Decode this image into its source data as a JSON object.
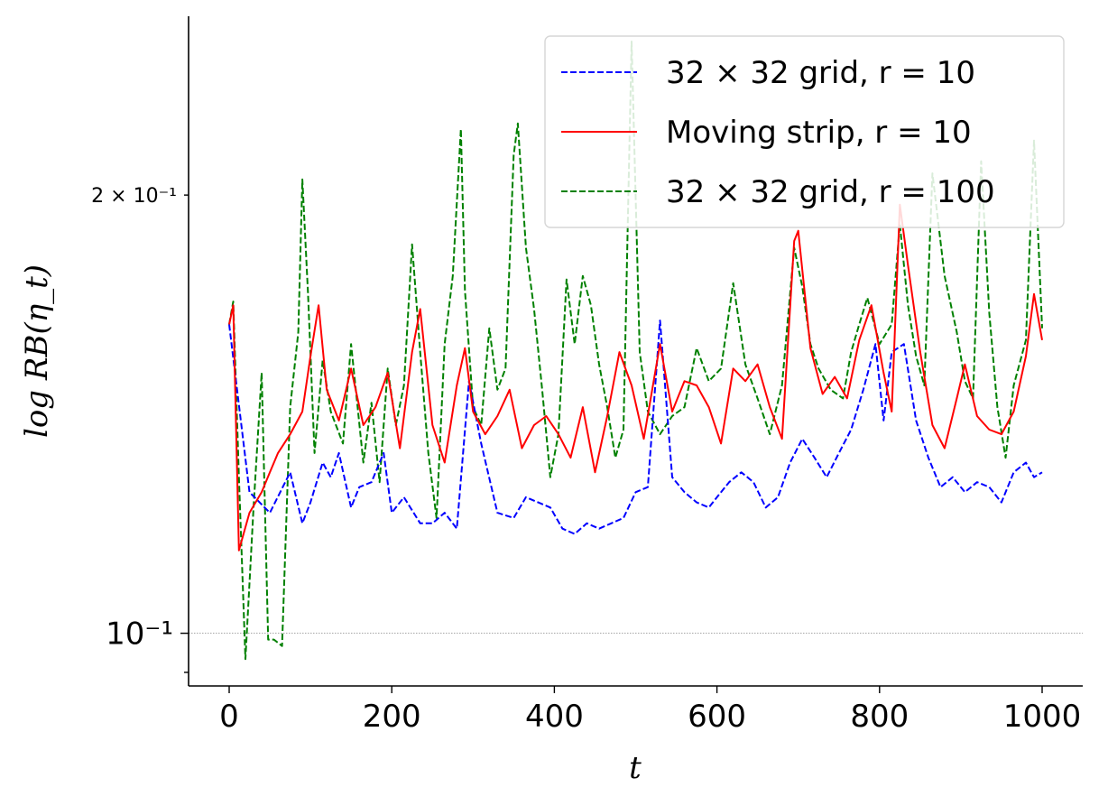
{
  "chart_data": {
    "type": "line",
    "title": "",
    "xlabel": "t",
    "ylabel": "log RB(η_t)",
    "yscale": "log",
    "xlim": [
      -50,
      1050
    ],
    "ylim": [
      0.092,
      0.262
    ],
    "x_ticks": [
      0,
      200,
      400,
      600,
      800,
      1000
    ],
    "x_tick_labels": [
      "0",
      "200",
      "400",
      "600",
      "800",
      "1000"
    ],
    "y_major_tick_label": "10⁻¹",
    "y_minor_tick_label": "2 × 10⁻¹",
    "reference_line": 0.1,
    "legend_position": "top-right",
    "series": [
      {
        "name": "32 × 32 grid, r = 10",
        "legend_label": "32 × 32 grid, r = 10",
        "color": "#0000ff",
        "style": "dashed",
        "x": [
          0,
          25,
          50,
          75,
          90,
          100,
          115,
          125,
          135,
          150,
          160,
          175,
          190,
          200,
          215,
          235,
          250,
          265,
          280,
          295,
          310,
          330,
          350,
          365,
          380,
          395,
          410,
          425,
          440,
          455,
          470,
          485,
          500,
          515,
          530,
          545,
          560,
          575,
          590,
          600,
          615,
          630,
          645,
          660,
          675,
          690,
          705,
          720,
          735,
          750,
          765,
          780,
          795,
          805,
          815,
          830,
          845,
          860,
          875,
          890,
          905,
          920,
          935,
          950,
          965,
          980,
          990,
          1000
        ],
        "values": [
          0.163,
          0.125,
          0.121,
          0.129,
          0.119,
          0.123,
          0.131,
          0.128,
          0.133,
          0.122,
          0.126,
          0.127,
          0.133,
          0.121,
          0.124,
          0.119,
          0.119,
          0.121,
          0.118,
          0.149,
          0.135,
          0.121,
          0.12,
          0.124,
          0.123,
          0.122,
          0.118,
          0.117,
          0.119,
          0.118,
          0.119,
          0.12,
          0.125,
          0.126,
          0.164,
          0.128,
          0.125,
          0.123,
          0.122,
          0.124,
          0.127,
          0.129,
          0.127,
          0.122,
          0.124,
          0.131,
          0.136,
          0.132,
          0.128,
          0.133,
          0.138,
          0.147,
          0.158,
          0.14,
          0.156,
          0.158,
          0.14,
          0.132,
          0.126,
          0.128,
          0.125,
          0.127,
          0.126,
          0.123,
          0.129,
          0.131,
          0.128,
          0.129
        ]
      },
      {
        "name": "Moving strip, r = 10",
        "legend_label": "Moving strip, r = 10",
        "color": "#ff0000",
        "style": "solid",
        "x": [
          0,
          5,
          12,
          25,
          40,
          50,
          60,
          75,
          90,
          100,
          110,
          120,
          135,
          150,
          165,
          180,
          195,
          210,
          225,
          235,
          250,
          265,
          280,
          290,
          300,
          315,
          330,
          345,
          360,
          375,
          390,
          405,
          420,
          435,
          450,
          465,
          480,
          495,
          510,
          530,
          545,
          560,
          575,
          590,
          605,
          620,
          635,
          650,
          665,
          680,
          695,
          700,
          715,
          730,
          745,
          760,
          775,
          790,
          805,
          815,
          825,
          835,
          850,
          865,
          880,
          895,
          905,
          920,
          935,
          950,
          965,
          980,
          990,
          1000
        ],
        "values": [
          0.163,
          0.168,
          0.114,
          0.121,
          0.125,
          0.129,
          0.133,
          0.137,
          0.142,
          0.155,
          0.168,
          0.147,
          0.14,
          0.152,
          0.139,
          0.143,
          0.151,
          0.134,
          0.156,
          0.167,
          0.139,
          0.131,
          0.148,
          0.157,
          0.142,
          0.137,
          0.141,
          0.147,
          0.134,
          0.139,
          0.141,
          0.137,
          0.132,
          0.143,
          0.129,
          0.141,
          0.156,
          0.148,
          0.136,
          0.158,
          0.142,
          0.149,
          0.148,
          0.143,
          0.135,
          0.152,
          0.149,
          0.153,
          0.143,
          0.136,
          0.186,
          0.189,
          0.157,
          0.146,
          0.15,
          0.145,
          0.159,
          0.168,
          0.151,
          0.142,
          0.197,
          0.179,
          0.156,
          0.139,
          0.134,
          0.145,
          0.153,
          0.141,
          0.138,
          0.137,
          0.142,
          0.155,
          0.171,
          0.159
        ]
      },
      {
        "name": "32 × 32 grid, r = 100",
        "legend_label": "32 × 32 grid, r = 100",
        "color": "#008000",
        "style": "dashed",
        "x": [
          0,
          5,
          12,
          20,
          30,
          40,
          48,
          55,
          65,
          75,
          85,
          90,
          97,
          105,
          115,
          125,
          140,
          150,
          165,
          175,
          185,
          195,
          205,
          215,
          225,
          235,
          245,
          255,
          265,
          275,
          285,
          290,
          300,
          310,
          320,
          330,
          340,
          350,
          355,
          365,
          375,
          385,
          395,
          405,
          415,
          425,
          435,
          445,
          455,
          465,
          475,
          485,
          495,
          505,
          515,
          530,
          545,
          560,
          575,
          590,
          605,
          620,
          635,
          650,
          665,
          680,
          695,
          705,
          715,
          725,
          740,
          755,
          765,
          775,
          785,
          800,
          815,
          825,
          835,
          845,
          855,
          865,
          880,
          895,
          905,
          915,
          925,
          935,
          945,
          955,
          965,
          980,
          990,
          1000
        ],
        "values": [
          0.163,
          0.169,
          0.128,
          0.096,
          0.122,
          0.151,
          0.099,
          0.099,
          0.098,
          0.143,
          0.161,
          0.205,
          0.171,
          0.133,
          0.154,
          0.142,
          0.135,
          0.158,
          0.131,
          0.144,
          0.127,
          0.152,
          0.139,
          0.148,
          0.185,
          0.156,
          0.133,
          0.12,
          0.158,
          0.176,
          0.222,
          0.172,
          0.143,
          0.139,
          0.162,
          0.147,
          0.152,
          0.213,
          0.224,
          0.184,
          0.167,
          0.147,
          0.128,
          0.137,
          0.175,
          0.158,
          0.176,
          0.168,
          0.153,
          0.143,
          0.132,
          0.138,
          0.255,
          0.156,
          0.142,
          0.137,
          0.141,
          0.143,
          0.157,
          0.149,
          0.152,
          0.174,
          0.153,
          0.145,
          0.137,
          0.148,
          0.184,
          0.173,
          0.158,
          0.152,
          0.147,
          0.145,
          0.156,
          0.163,
          0.17,
          0.158,
          0.163,
          0.191,
          0.168,
          0.155,
          0.148,
          0.207,
          0.176,
          0.161,
          0.149,
          0.145,
          0.211,
          0.166,
          0.143,
          0.132,
          0.148,
          0.159,
          0.218,
          0.162
        ]
      }
    ]
  }
}
